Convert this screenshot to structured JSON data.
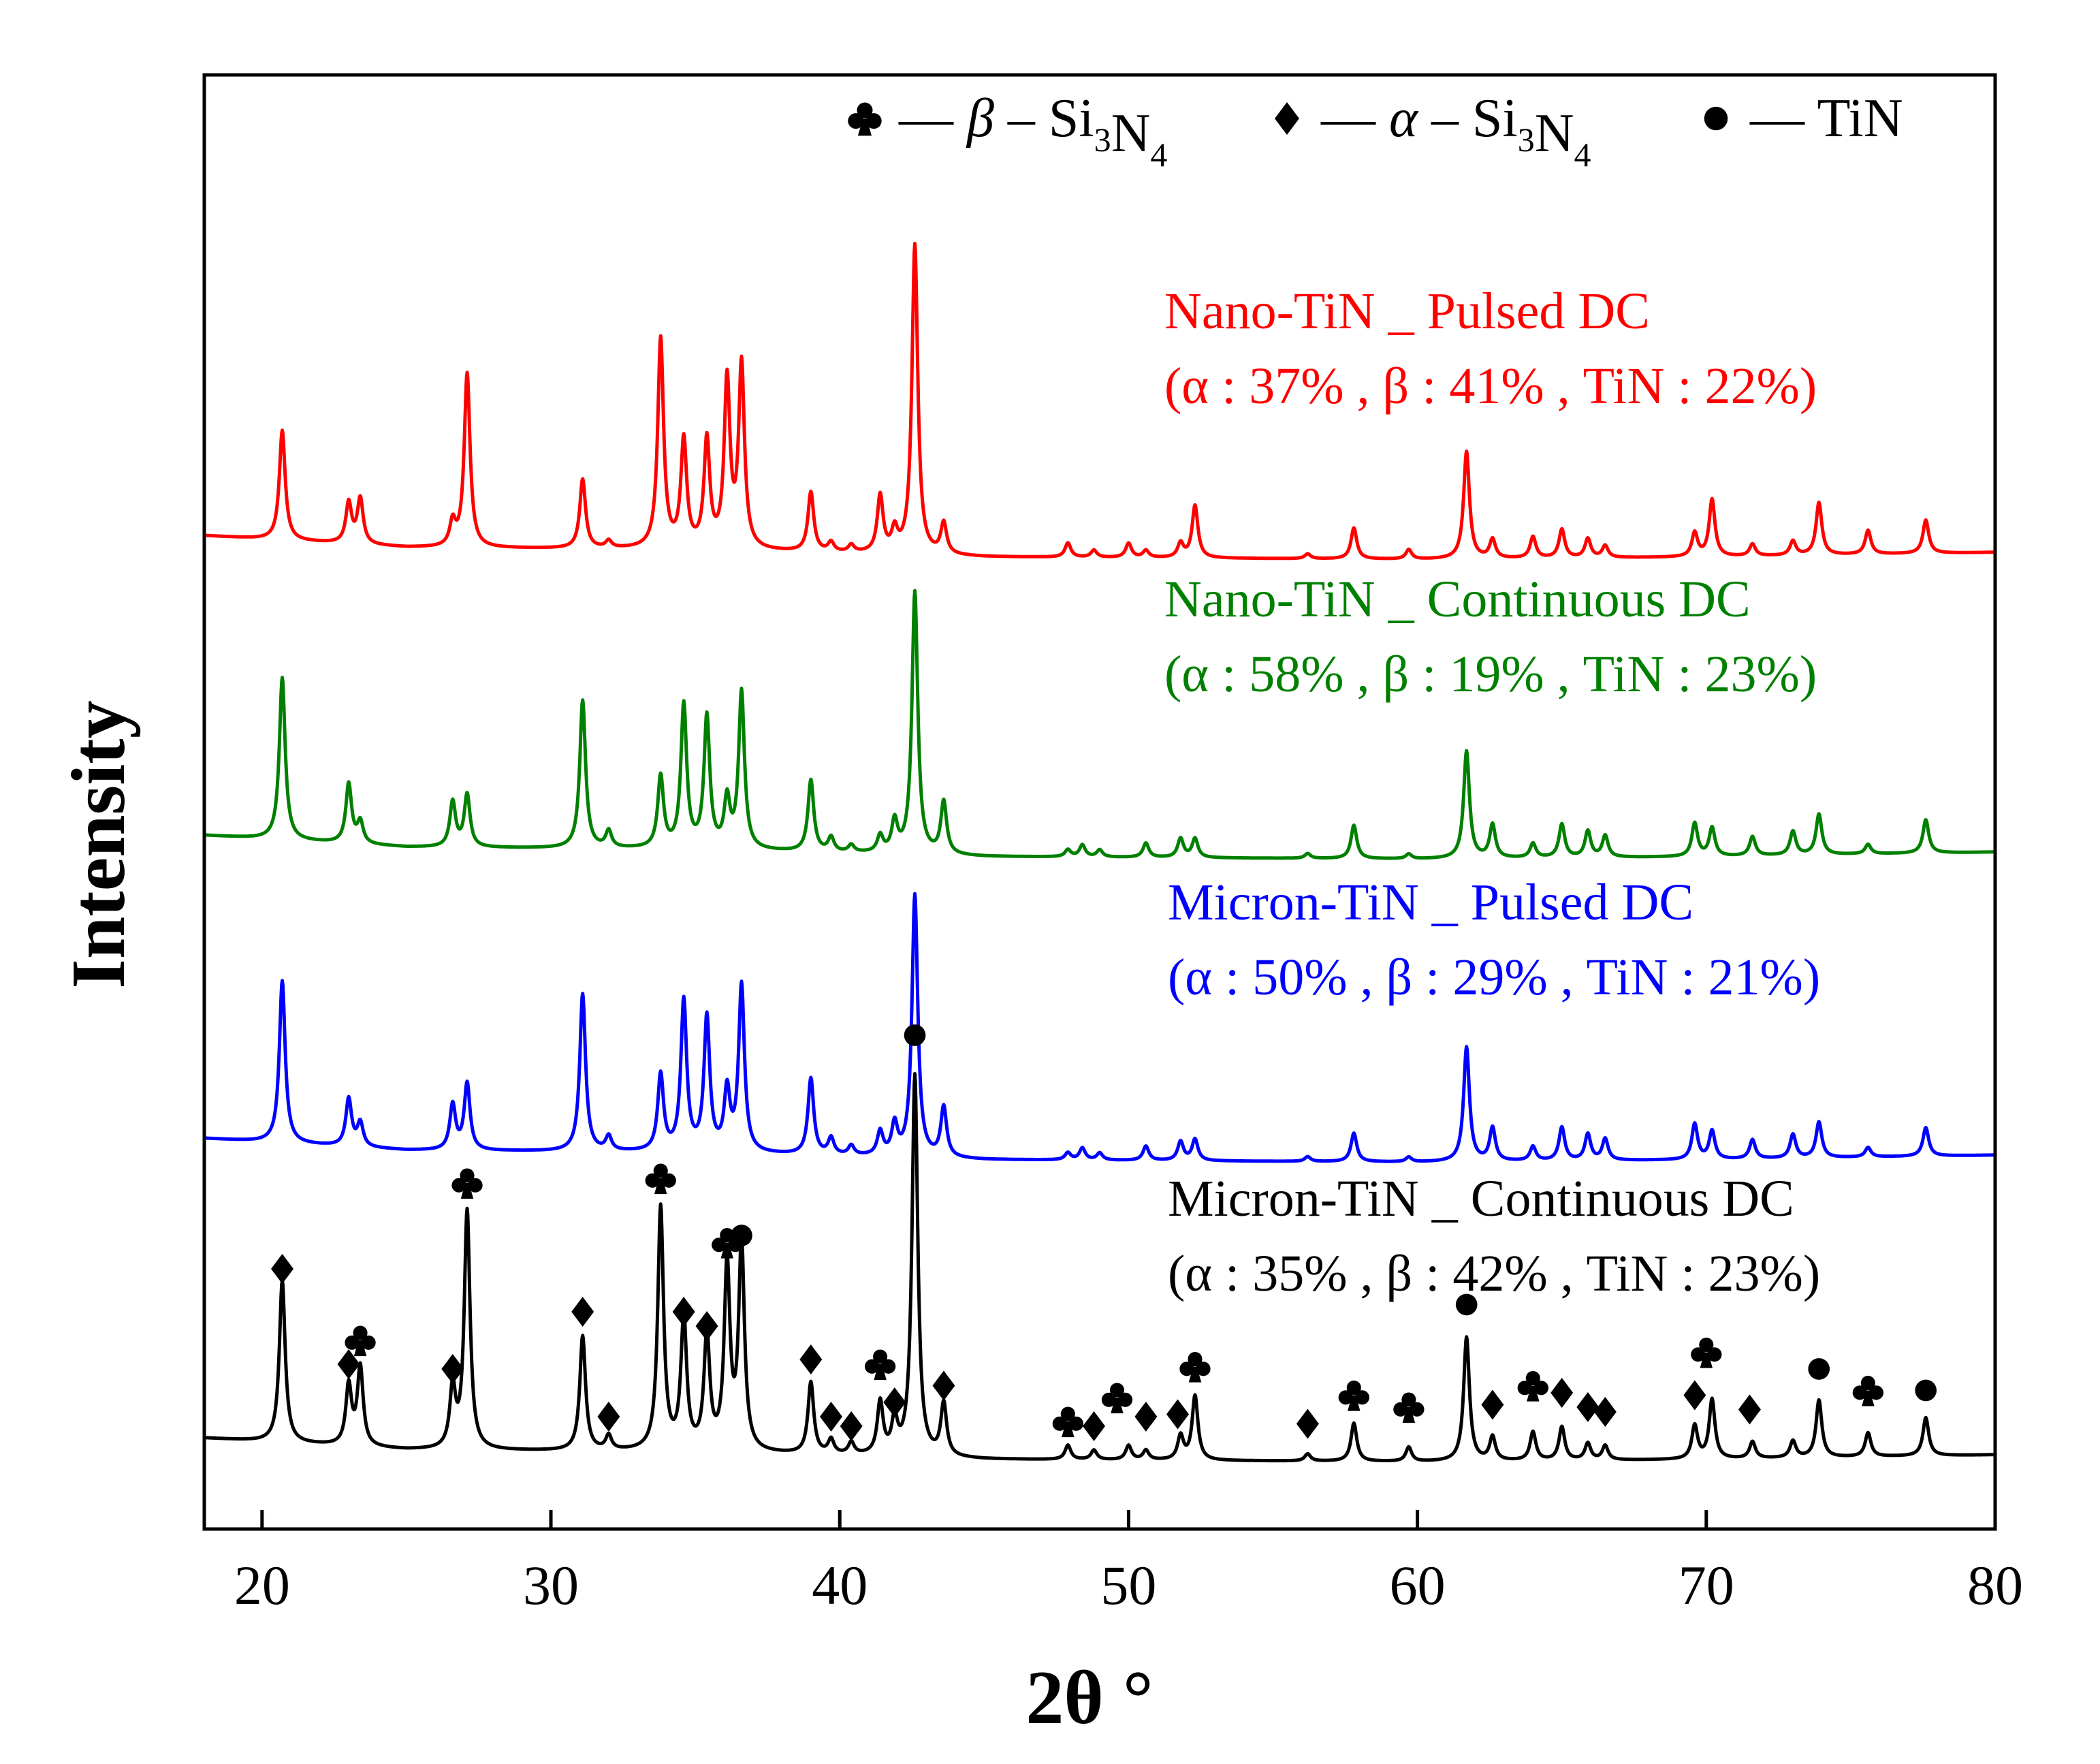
{
  "chart_data": {
    "type": "line",
    "title": "",
    "xlabel": "2θ °",
    "ylabel": "Intensity",
    "xlim": [
      18,
      80
    ],
    "xticks": [
      20,
      30,
      40,
      50,
      60,
      70,
      80
    ],
    "legend": [
      {
        "symbol": "club",
        "label_pre": "— ",
        "greek": "β",
        "label_mid": " – Si",
        "sub1": "3",
        "mid2": "N",
        "sub2": "4"
      },
      {
        "symbol": "diamond",
        "label_pre": "— ",
        "greek": "α",
        "label_mid": " – Si",
        "sub1": "3",
        "mid2": "N",
        "sub2": "4"
      },
      {
        "symbol": "dot",
        "label_pre": "— ",
        "greek": "",
        "label_mid": " TiN",
        "sub1": "",
        "mid2": "",
        "sub2": ""
      }
    ],
    "series": [
      {
        "name": "Micron-TiN _ Continuous DC",
        "composition": "(α : 35% , β : 42% , TiN : 23%)",
        "color": "#000000",
        "baseline": [
          [
            18,
            0.11
          ],
          [
            25,
            0.06
          ],
          [
            35,
            0.05
          ],
          [
            45,
            0.02
          ],
          [
            60,
            0.01
          ],
          [
            70,
            0.02
          ],
          [
            80,
            0.04
          ]
        ],
        "peaks": [
          [
            20.7,
            0.68
          ],
          [
            23.0,
            0.25
          ],
          [
            23.4,
            0.33
          ],
          [
            26.6,
            0.25
          ],
          [
            27.1,
            1.0
          ],
          [
            31.1,
            0.48
          ],
          [
            32.0,
            0.06
          ],
          [
            33.8,
            1.02
          ],
          [
            34.6,
            0.55
          ],
          [
            35.4,
            0.48
          ],
          [
            36.1,
            0.77
          ],
          [
            36.6,
            0.87
          ],
          [
            39.0,
            0.3
          ],
          [
            39.7,
            0.06
          ],
          [
            40.4,
            0.05
          ],
          [
            41.4,
            0.22
          ],
          [
            41.9,
            0.14
          ],
          [
            42.6,
            1.6
          ],
          [
            43.6,
            0.22
          ],
          [
            47.9,
            0.06
          ],
          [
            48.8,
            0.04
          ],
          [
            50.0,
            0.06
          ],
          [
            50.6,
            0.04
          ],
          [
            51.8,
            0.1
          ],
          [
            52.3,
            0.27
          ],
          [
            56.2,
            0.03
          ],
          [
            57.8,
            0.16
          ],
          [
            59.7,
            0.06
          ],
          [
            61.7,
            0.52
          ],
          [
            62.6,
            0.1
          ],
          [
            64.0,
            0.12
          ],
          [
            65.0,
            0.14
          ],
          [
            65.9,
            0.07
          ],
          [
            66.5,
            0.06
          ],
          [
            69.6,
            0.14
          ],
          [
            70.2,
            0.25
          ],
          [
            71.6,
            0.07
          ],
          [
            73.0,
            0.07
          ],
          [
            73.9,
            0.24
          ],
          [
            75.6,
            0.1
          ],
          [
            77.6,
            0.16
          ]
        ],
        "markers": [
          {
            "x": 20.7,
            "h": 0.82,
            "sym": "diamond"
          },
          {
            "x": 23.0,
            "h": 0.42,
            "sym": "diamond"
          },
          {
            "x": 23.4,
            "h": 0.52,
            "sym": "club"
          },
          {
            "x": 26.6,
            "h": 0.4,
            "sym": "diamond"
          },
          {
            "x": 27.1,
            "h": 1.18,
            "sym": "club"
          },
          {
            "x": 31.1,
            "h": 0.64,
            "sym": "diamond"
          },
          {
            "x": 32.0,
            "h": 0.2,
            "sym": "diamond"
          },
          {
            "x": 33.8,
            "h": 1.2,
            "sym": "club"
          },
          {
            "x": 34.6,
            "h": 0.64,
            "sym": "diamond"
          },
          {
            "x": 35.4,
            "h": 0.58,
            "sym": "diamond"
          },
          {
            "x": 36.1,
            "h": 0.93,
            "sym": "club"
          },
          {
            "x": 36.6,
            "h": 0.96,
            "sym": "dot"
          },
          {
            "x": 39.0,
            "h": 0.44,
            "sym": "diamond"
          },
          {
            "x": 39.7,
            "h": 0.2,
            "sym": "diamond"
          },
          {
            "x": 40.4,
            "h": 0.16,
            "sym": "diamond"
          },
          {
            "x": 41.4,
            "h": 0.42,
            "sym": "club"
          },
          {
            "x": 41.9,
            "h": 0.26,
            "sym": "diamond"
          },
          {
            "x": 42.6,
            "h": 1.8,
            "sym": "dot"
          },
          {
            "x": 43.6,
            "h": 0.33,
            "sym": "diamond"
          },
          {
            "x": 47.9,
            "h": 0.18,
            "sym": "club"
          },
          {
            "x": 48.8,
            "h": 0.16,
            "sym": "diamond"
          },
          {
            "x": 49.6,
            "h": 0.28,
            "sym": "club"
          },
          {
            "x": 50.6,
            "h": 0.2,
            "sym": "diamond"
          },
          {
            "x": 51.7,
            "h": 0.21,
            "sym": "diamond"
          },
          {
            "x": 52.3,
            "h": 0.41,
            "sym": "club"
          },
          {
            "x": 56.2,
            "h": 0.17,
            "sym": "diamond"
          },
          {
            "x": 57.8,
            "h": 0.29,
            "sym": "club"
          },
          {
            "x": 59.7,
            "h": 0.24,
            "sym": "club"
          },
          {
            "x": 61.7,
            "h": 0.67,
            "sym": "dot"
          },
          {
            "x": 62.6,
            "h": 0.25,
            "sym": "diamond"
          },
          {
            "x": 64.0,
            "h": 0.33,
            "sym": "club"
          },
          {
            "x": 65.0,
            "h": 0.3,
            "sym": "diamond"
          },
          {
            "x": 65.9,
            "h": 0.24,
            "sym": "diamond"
          },
          {
            "x": 66.5,
            "h": 0.22,
            "sym": "diamond"
          },
          {
            "x": 69.6,
            "h": 0.29,
            "sym": "diamond"
          },
          {
            "x": 70.0,
            "h": 0.47,
            "sym": "club"
          },
          {
            "x": 71.5,
            "h": 0.23,
            "sym": "diamond"
          },
          {
            "x": 73.9,
            "h": 0.4,
            "sym": "dot"
          },
          {
            "x": 75.6,
            "h": 0.31,
            "sym": "club"
          },
          {
            "x": 77.6,
            "h": 0.31,
            "sym": "dot"
          }
        ]
      },
      {
        "name": "Micron-TiN _ Pulsed DC",
        "composition": "(α : 50% , β : 29% , TiN : 21%)",
        "color": "#0000ff",
        "baseline": [
          [
            18,
            0.11
          ],
          [
            25,
            0.06
          ],
          [
            35,
            0.05
          ],
          [
            45,
            0.02
          ],
          [
            60,
            0.01
          ],
          [
            70,
            0.02
          ],
          [
            80,
            0.04
          ]
        ],
        "peaks": [
          [
            20.7,
            0.68
          ],
          [
            23.0,
            0.2
          ],
          [
            23.4,
            0.1
          ],
          [
            26.6,
            0.19
          ],
          [
            27.1,
            0.28
          ],
          [
            31.1,
            0.66
          ],
          [
            32.0,
            0.06
          ],
          [
            33.8,
            0.32
          ],
          [
            34.6,
            0.63
          ],
          [
            35.4,
            0.56
          ],
          [
            36.1,
            0.25
          ],
          [
            36.6,
            0.7
          ],
          [
            39.0,
            0.32
          ],
          [
            39.7,
            0.07
          ],
          [
            40.4,
            0.04
          ],
          [
            41.4,
            0.1
          ],
          [
            41.9,
            0.13
          ],
          [
            42.6,
            1.1
          ],
          [
            43.6,
            0.21
          ],
          [
            47.9,
            0.03
          ],
          [
            48.4,
            0.05
          ],
          [
            49.0,
            0.03
          ],
          [
            50.6,
            0.06
          ],
          [
            51.8,
            0.08
          ],
          [
            52.3,
            0.09
          ],
          [
            56.2,
            0.02
          ],
          [
            57.8,
            0.12
          ],
          [
            59.7,
            0.02
          ],
          [
            61.7,
            0.48
          ],
          [
            62.6,
            0.14
          ],
          [
            64.0,
            0.06
          ],
          [
            65.0,
            0.14
          ],
          [
            65.9,
            0.11
          ],
          [
            66.5,
            0.09
          ],
          [
            69.6,
            0.15
          ],
          [
            70.2,
            0.12
          ],
          [
            71.6,
            0.08
          ],
          [
            73.0,
            0.1
          ],
          [
            73.9,
            0.15
          ],
          [
            75.6,
            0.04
          ],
          [
            77.6,
            0.12
          ]
        ],
        "markers": []
      },
      {
        "name": "Nano-TiN _ Continuous DC",
        "composition": "(α : 58% , β : 19% , TiN : 23%)",
        "color": "#008000",
        "baseline": [
          [
            18,
            0.11
          ],
          [
            25,
            0.06
          ],
          [
            35,
            0.05
          ],
          [
            45,
            0.02
          ],
          [
            60,
            0.01
          ],
          [
            70,
            0.02
          ],
          [
            80,
            0.04
          ]
        ],
        "peaks": [
          [
            20.7,
            0.68
          ],
          [
            23.0,
            0.25
          ],
          [
            23.4,
            0.09
          ],
          [
            26.6,
            0.19
          ],
          [
            27.1,
            0.22
          ],
          [
            31.1,
            0.62
          ],
          [
            32.0,
            0.07
          ],
          [
            33.8,
            0.3
          ],
          [
            34.6,
            0.6
          ],
          [
            35.4,
            0.55
          ],
          [
            36.1,
            0.2
          ],
          [
            36.6,
            0.66
          ],
          [
            39.0,
            0.3
          ],
          [
            39.7,
            0.06
          ],
          [
            40.4,
            0.03
          ],
          [
            41.4,
            0.07
          ],
          [
            41.9,
            0.13
          ],
          [
            42.6,
            1.1
          ],
          [
            43.6,
            0.22
          ],
          [
            47.9,
            0.03
          ],
          [
            48.4,
            0.05
          ],
          [
            49.0,
            0.03
          ],
          [
            50.6,
            0.06
          ],
          [
            51.8,
            0.08
          ],
          [
            52.3,
            0.08
          ],
          [
            56.2,
            0.02
          ],
          [
            57.8,
            0.14
          ],
          [
            59.7,
            0.02
          ],
          [
            61.7,
            0.45
          ],
          [
            62.6,
            0.14
          ],
          [
            64.0,
            0.06
          ],
          [
            65.0,
            0.14
          ],
          [
            65.9,
            0.11
          ],
          [
            66.5,
            0.09
          ],
          [
            69.6,
            0.14
          ],
          [
            70.2,
            0.12
          ],
          [
            71.6,
            0.08
          ],
          [
            73.0,
            0.1
          ],
          [
            73.9,
            0.17
          ],
          [
            75.6,
            0.04
          ],
          [
            77.6,
            0.14
          ]
        ],
        "markers": []
      },
      {
        "name": "Nano-TiN _ Pulsed DC",
        "composition": "(α : 37% , β : 41% , TiN : 22%)",
        "color": "#ff0000",
        "baseline": [
          [
            18,
            0.11
          ],
          [
            25,
            0.06
          ],
          [
            35,
            0.05
          ],
          [
            45,
            0.02
          ],
          [
            60,
            0.01
          ],
          [
            70,
            0.02
          ],
          [
            80,
            0.04
          ]
        ],
        "peaks": [
          [
            20.7,
            0.46
          ],
          [
            23.0,
            0.17
          ],
          [
            23.4,
            0.19
          ],
          [
            26.6,
            0.1
          ],
          [
            27.1,
            0.73
          ],
          [
            31.1,
            0.29
          ],
          [
            32.0,
            0.03
          ],
          [
            33.8,
            0.88
          ],
          [
            34.6,
            0.45
          ],
          [
            35.4,
            0.45
          ],
          [
            36.1,
            0.7
          ],
          [
            36.6,
            0.77
          ],
          [
            39.0,
            0.25
          ],
          [
            39.7,
            0.04
          ],
          [
            40.4,
            0.03
          ],
          [
            41.4,
            0.24
          ],
          [
            41.9,
            0.09
          ],
          [
            42.6,
            1.3
          ],
          [
            43.6,
            0.13
          ],
          [
            47.9,
            0.06
          ],
          [
            48.8,
            0.03
          ],
          [
            50.0,
            0.06
          ],
          [
            50.6,
            0.03
          ],
          [
            51.8,
            0.06
          ],
          [
            52.3,
            0.22
          ],
          [
            56.2,
            0.02
          ],
          [
            57.8,
            0.13
          ],
          [
            59.7,
            0.04
          ],
          [
            61.7,
            0.45
          ],
          [
            62.6,
            0.08
          ],
          [
            64.0,
            0.09
          ],
          [
            65.0,
            0.12
          ],
          [
            65.9,
            0.08
          ],
          [
            66.5,
            0.05
          ],
          [
            69.6,
            0.1
          ],
          [
            70.2,
            0.24
          ],
          [
            71.6,
            0.05
          ],
          [
            73.0,
            0.06
          ],
          [
            73.9,
            0.22
          ],
          [
            75.6,
            0.1
          ],
          [
            77.6,
            0.14
          ]
        ],
        "markers": []
      }
    ]
  }
}
